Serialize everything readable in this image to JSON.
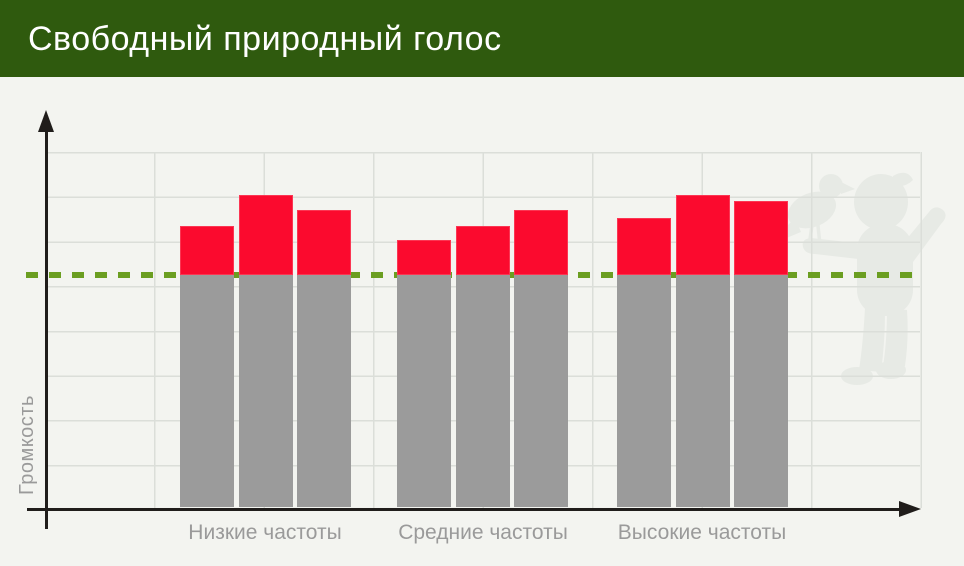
{
  "header": {
    "title": "Свободный природный голос"
  },
  "colors": {
    "background": "#f3f4f0",
    "header_green": "#2f5a0e",
    "bar_red": "#fb0a2e",
    "bar_gray": "#9b9b9b",
    "gridline": "#dbded9",
    "threshold_green": "#6b9e21",
    "axis_black": "#201d1b",
    "label_gray": "#9a9a9a",
    "watermark_gray": "#e7eae5",
    "title_text": "#ffffff"
  },
  "chart_data": {
    "type": "bar",
    "title": "Свободный природный голос",
    "categories": [
      "Низкие частоты",
      "Средние частоты",
      "Высокие частоты"
    ],
    "groups": [
      {
        "label": "Низкие частоты",
        "values": [
          70.7,
          78.3,
          74.5
        ]
      },
      {
        "label": "Средние частоты",
        "values": [
          67.2,
          70.7,
          74.7
        ]
      },
      {
        "label": "Высокие частоты",
        "values": [
          72.5,
          78.3,
          76.8
        ]
      }
    ],
    "threshold": {
      "value": 58.4,
      "style": "dashed",
      "color": "#6b9e21",
      "meaning": "level separating gray lower bar segment from red upper segment"
    },
    "bar_colors": {
      "below_threshold": "#9b9b9b",
      "above_threshold": "#fb0a2e"
    },
    "xlabel": "",
    "ylabel": "Громкость",
    "ylim": [
      0,
      100
    ],
    "axis_ticks": "none",
    "grid": true,
    "legend": "none"
  }
}
